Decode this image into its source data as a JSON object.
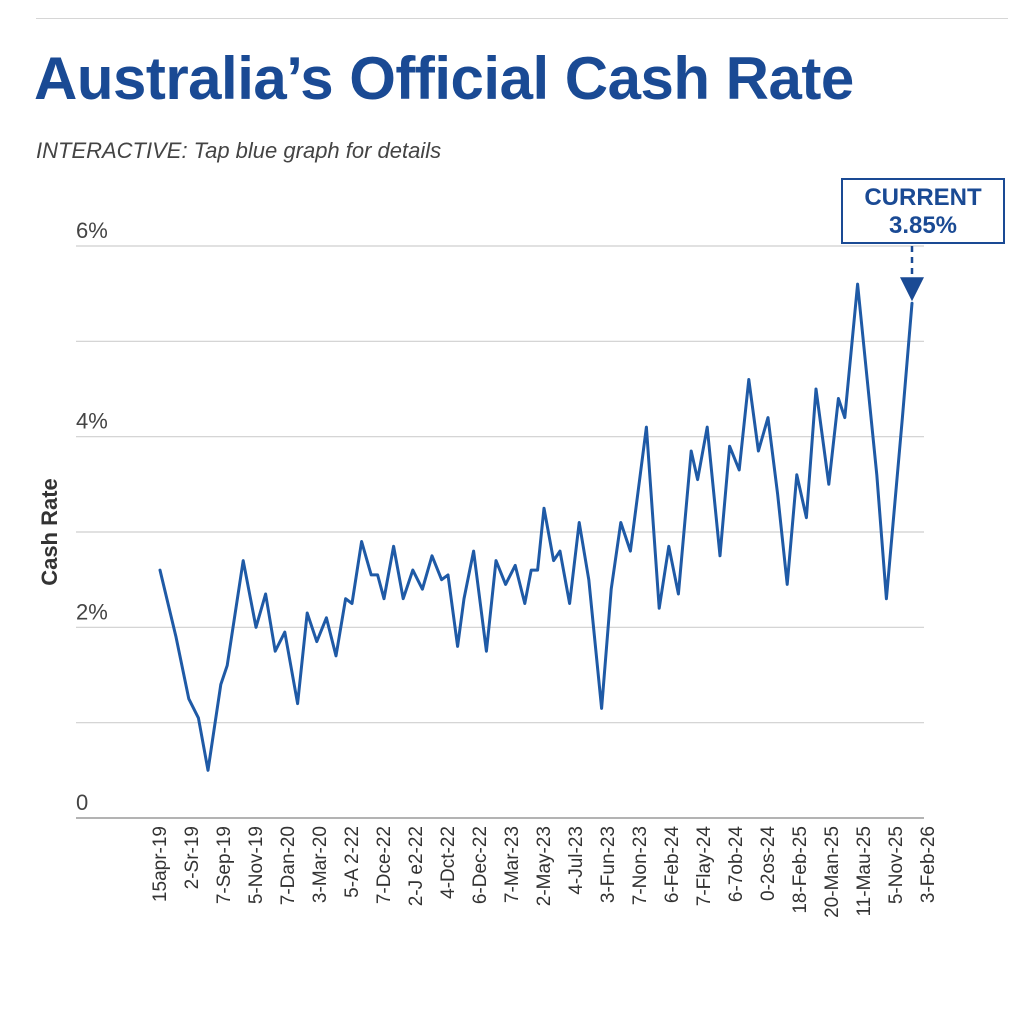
{
  "header": {
    "title": "Australia’s Official Cash Rate",
    "subtitle": "INTERACTIVE: Tap blue graph for details"
  },
  "badge": {
    "label": "CURRENT",
    "value": "3.85%"
  },
  "colors": {
    "line": "#1f5aa6",
    "title": "#1a4a94",
    "grid": "#cfcfcf"
  },
  "chart_data": {
    "type": "line",
    "ylabel": "Cash Rate",
    "ylim": [
      0,
      6
    ],
    "y_ticks": [
      {
        "value": 0,
        "label": "0"
      },
      {
        "value": 2,
        "label": "2%"
      },
      {
        "value": 4,
        "label": "4%"
      },
      {
        "value": 6,
        "label": "6%"
      }
    ],
    "y_gridlines": [
      1,
      2,
      3,
      4,
      5,
      6
    ],
    "x_tick_labels": [
      "15apr-19",
      "2-Sr-19",
      "7-Sep-19",
      "5-Nov-19",
      "7-Dan-20",
      "3-Mar-20",
      "5-A 2-22",
      "7-Dce-22",
      "2-J e2-22",
      "4-Dct-22",
      "6-Dec-22",
      "7-Mar-23",
      "2-May-23",
      "4-Jul-23",
      "3-Fun-23",
      "7-Non-23",
      "6-Feb-24",
      "7-Flay-24",
      "6-7ob-24",
      "0-2os-24",
      "18-Feb-25",
      "20-Man-25",
      "11-Mau-25",
      "5-Nov-25",
      "3-Feb-26"
    ],
    "series": [
      {
        "values": [
          [
            0.0,
            2.6
          ],
          [
            0.5,
            1.9
          ],
          [
            0.9,
            1.25
          ],
          [
            1.2,
            1.05
          ],
          [
            1.5,
            0.5
          ],
          [
            1.9,
            1.4
          ],
          [
            2.1,
            1.6
          ],
          [
            2.6,
            2.7
          ],
          [
            3.0,
            2.0
          ],
          [
            3.3,
            2.35
          ],
          [
            3.6,
            1.75
          ],
          [
            3.9,
            1.95
          ],
          [
            4.3,
            1.2
          ],
          [
            4.6,
            2.15
          ],
          [
            4.9,
            1.85
          ],
          [
            5.2,
            2.1
          ],
          [
            5.5,
            1.7
          ],
          [
            5.8,
            2.3
          ],
          [
            6.0,
            2.25
          ],
          [
            6.3,
            2.9
          ],
          [
            6.6,
            2.55
          ],
          [
            6.8,
            2.55
          ],
          [
            7.0,
            2.3
          ],
          [
            7.3,
            2.85
          ],
          [
            7.6,
            2.3
          ],
          [
            7.9,
            2.6
          ],
          [
            8.2,
            2.4
          ],
          [
            8.5,
            2.75
          ],
          [
            8.8,
            2.5
          ],
          [
            9.0,
            2.55
          ],
          [
            9.3,
            1.8
          ],
          [
            9.5,
            2.3
          ],
          [
            9.8,
            2.8
          ],
          [
            10.2,
            1.75
          ],
          [
            10.5,
            2.7
          ],
          [
            10.8,
            2.45
          ],
          [
            11.1,
            2.65
          ],
          [
            11.4,
            2.25
          ],
          [
            11.6,
            2.6
          ],
          [
            11.8,
            2.6
          ],
          [
            12.0,
            3.25
          ],
          [
            12.3,
            2.7
          ],
          [
            12.5,
            2.8
          ],
          [
            12.8,
            2.25
          ],
          [
            13.1,
            3.1
          ],
          [
            13.4,
            2.5
          ],
          [
            13.8,
            1.15
          ],
          [
            14.1,
            2.4
          ],
          [
            14.4,
            3.1
          ],
          [
            14.7,
            2.8
          ],
          [
            15.2,
            4.1
          ],
          [
            15.6,
            2.2
          ],
          [
            15.9,
            2.85
          ],
          [
            16.2,
            2.35
          ],
          [
            16.6,
            3.85
          ],
          [
            16.8,
            3.55
          ],
          [
            17.1,
            4.1
          ],
          [
            17.5,
            2.75
          ],
          [
            17.8,
            3.9
          ],
          [
            18.1,
            3.65
          ],
          [
            18.4,
            4.6
          ],
          [
            18.7,
            3.85
          ],
          [
            19.0,
            4.2
          ],
          [
            19.3,
            3.4
          ],
          [
            19.6,
            2.45
          ],
          [
            19.9,
            3.6
          ],
          [
            20.2,
            3.15
          ],
          [
            20.5,
            4.5
          ],
          [
            20.9,
            3.5
          ],
          [
            21.2,
            4.4
          ],
          [
            21.4,
            4.2
          ],
          [
            21.8,
            5.6
          ],
          [
            22.1,
            4.6
          ],
          [
            22.4,
            3.6
          ],
          [
            22.7,
            2.3
          ],
          [
            23.2,
            4.2
          ],
          [
            23.5,
            5.4
          ]
        ]
      }
    ]
  }
}
